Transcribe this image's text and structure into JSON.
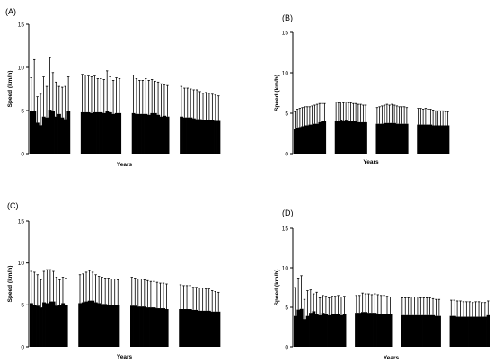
{
  "chart_data": [
    {
      "type": "bar",
      "panel": "(A)",
      "xlabel": "Years",
      "ylabel": "Speed (km/h)",
      "ylim": [
        0,
        15
      ],
      "yticks": [
        0,
        5,
        10,
        15
      ],
      "error_bars": "upper",
      "groups": [
        {
          "values": [
            5.0,
            5.0,
            3.6,
            3.3,
            4.3,
            4.2,
            5.1,
            5.0,
            4.3,
            4.6,
            4.2,
            4.0,
            4.9
          ],
          "errors": [
            3.8,
            5.9,
            3.0,
            3.6,
            4.6,
            3.6,
            6.1,
            4.4,
            4.0,
            3.2,
            3.5,
            3.8,
            4.0
          ]
        },
        {
          "values": [
            4.8,
            4.8,
            4.8,
            4.7,
            4.8,
            4.8,
            4.8,
            4.7,
            4.9,
            4.8,
            4.6,
            4.7,
            4.7
          ],
          "errors": [
            4.4,
            4.3,
            4.2,
            4.2,
            4.2,
            3.9,
            3.9,
            3.9,
            4.7,
            4.1,
            3.9,
            4.1,
            4.0
          ]
        },
        {
          "values": [
            4.7,
            4.6,
            4.6,
            4.6,
            4.6,
            4.5,
            4.7,
            4.7,
            4.5,
            4.3,
            4.4,
            4.3
          ],
          "errors": [
            4.4,
            4.1,
            3.9,
            3.9,
            4.1,
            4.0,
            3.9,
            3.7,
            3.8,
            3.8,
            3.6,
            3.6
          ]
        },
        {
          "values": [
            4.3,
            4.2,
            4.2,
            4.2,
            4.1,
            4.0,
            4.0,
            3.9,
            3.9,
            3.9,
            3.9,
            3.8,
            3.8
          ],
          "errors": [
            3.5,
            3.4,
            3.4,
            3.3,
            3.3,
            3.4,
            3.2,
            3.1,
            3.2,
            3.1,
            3.0,
            3.0,
            2.9
          ]
        }
      ]
    },
    {
      "type": "bar",
      "panel": "(B)",
      "xlabel": "Years",
      "ylabel": "Speed (km/h)",
      "ylim": [
        0,
        15
      ],
      "yticks": [
        0,
        5,
        10,
        15
      ],
      "error_bars": "upper",
      "groups": [
        {
          "values": [
            3.0,
            3.2,
            3.3,
            3.4,
            3.5,
            3.5,
            3.6,
            3.6,
            3.7,
            3.7,
            3.9,
            4.0,
            4.0
          ],
          "errors": [
            2.2,
            2.3,
            2.3,
            2.3,
            2.3,
            2.3,
            2.2,
            2.3,
            2.3,
            2.4,
            2.3,
            2.2,
            2.2
          ]
        },
        {
          "values": [
            4.0,
            4.0,
            4.1,
            4.0,
            4.1,
            4.0,
            4.0,
            4.0,
            4.0,
            3.9,
            3.9,
            3.9,
            3.9
          ],
          "errors": [
            2.4,
            2.3,
            2.3,
            2.3,
            2.3,
            2.3,
            2.3,
            2.2,
            2.2,
            2.2,
            2.2,
            2.1,
            2.1
          ]
        },
        {
          "values": [
            3.7,
            3.7,
            3.7,
            3.8,
            3.8,
            3.8,
            3.8,
            3.8,
            3.7,
            3.7,
            3.7,
            3.7,
            3.7
          ],
          "errors": [
            2.0,
            2.1,
            2.2,
            2.2,
            2.3,
            2.2,
            2.3,
            2.2,
            2.2,
            2.1,
            2.1,
            2.1,
            2.0
          ]
        },
        {
          "values": [
            3.6,
            3.6,
            3.6,
            3.6,
            3.6,
            3.6,
            3.5,
            3.5,
            3.5,
            3.5,
            3.5,
            3.5,
            3.5
          ],
          "errors": [
            2.0,
            2.0,
            1.9,
            2.0,
            1.9,
            1.9,
            1.9,
            1.8,
            1.8,
            1.8,
            1.8,
            1.7,
            1.7
          ]
        }
      ]
    },
    {
      "type": "bar",
      "panel": "(C)",
      "xlabel": "Years",
      "ylabel": "Speed (km/h)",
      "ylim": [
        0,
        15
      ],
      "yticks": [
        0,
        5,
        10,
        15
      ],
      "error_bars": "upper",
      "groups": [
        {
          "values": [
            5.2,
            5.0,
            4.9,
            4.7,
            5.3,
            5.2,
            5.4,
            5.4,
            4.9,
            5.0,
            5.2,
            5.0
          ],
          "errors": [
            3.8,
            3.9,
            3.7,
            3.3,
            3.7,
            4.0,
            3.8,
            3.6,
            3.4,
            3.0,
            3.1,
            3.2
          ]
        },
        {
          "values": [
            5.2,
            5.3,
            5.4,
            5.5,
            5.5,
            5.3,
            5.2,
            5.1,
            5.1,
            5.0,
            5.0,
            5.0,
            5.0
          ],
          "errors": [
            3.4,
            3.4,
            3.5,
            3.6,
            3.4,
            3.3,
            3.2,
            3.2,
            3.1,
            3.2,
            3.1,
            3.1,
            3.0
          ]
        },
        {
          "values": [
            4.9,
            4.9,
            4.8,
            4.8,
            4.8,
            4.7,
            4.7,
            4.7,
            4.6,
            4.6,
            4.6,
            4.5
          ],
          "errors": [
            3.4,
            3.3,
            3.3,
            3.3,
            3.2,
            3.2,
            3.1,
            3.1,
            3.1,
            3.0,
            3.0,
            3.0
          ]
        },
        {
          "values": [
            4.5,
            4.5,
            4.5,
            4.5,
            4.4,
            4.4,
            4.3,
            4.3,
            4.3,
            4.3,
            4.2,
            4.2,
            4.2
          ],
          "errors": [
            2.9,
            2.8,
            2.8,
            2.8,
            2.7,
            2.7,
            2.7,
            2.7,
            2.6,
            2.6,
            2.5,
            2.4,
            2.3
          ]
        }
      ]
    },
    {
      "type": "bar",
      "panel": "(D)",
      "xlabel": "Years",
      "ylabel": "Speed (km/h)",
      "ylim": [
        0,
        15
      ],
      "yticks": [
        0,
        5,
        10,
        15
      ],
      "error_bars": "upper",
      "groups": [
        {
          "values": [
            3.9,
            4.7,
            4.8,
            3.5,
            3.9,
            4.3,
            4.5,
            4.2,
            4.0,
            4.3,
            4.1,
            4.0,
            4.1,
            4.1,
            4.1,
            4.0,
            4.1
          ],
          "errors": [
            3.6,
            4.0,
            4.2,
            2.5,
            3.2,
            2.9,
            2.2,
            2.7,
            2.2,
            2.2,
            2.3,
            2.2,
            2.3,
            2.3,
            2.4,
            2.3,
            2.3
          ]
        },
        {
          "values": [
            4.3,
            4.3,
            4.4,
            4.4,
            4.3,
            4.3,
            4.3,
            4.2,
            4.2,
            4.2,
            4.2,
            4.1
          ],
          "errors": [
            2.2,
            2.2,
            2.4,
            2.3,
            2.4,
            2.3,
            2.4,
            2.4,
            2.3,
            2.3,
            2.2,
            2.2
          ]
        },
        {
          "values": [
            4.0,
            4.0,
            4.0,
            4.0,
            4.0,
            4.0,
            4.0,
            4.0,
            4.0,
            4.0,
            4.0,
            3.9,
            3.9
          ],
          "errors": [
            2.2,
            2.2,
            2.2,
            2.3,
            2.3,
            2.3,
            2.2,
            2.2,
            2.2,
            2.2,
            2.1,
            2.1,
            2.1
          ]
        },
        {
          "values": [
            3.9,
            3.9,
            3.8,
            3.8,
            3.8,
            3.8,
            3.8,
            3.8,
            3.8,
            3.8,
            3.8,
            3.8,
            4.0
          ],
          "errors": [
            2.0,
            2.0,
            2.0,
            2.0,
            1.9,
            1.9,
            1.9,
            1.8,
            1.9,
            1.9,
            1.8,
            1.8,
            1.8
          ]
        }
      ]
    }
  ]
}
